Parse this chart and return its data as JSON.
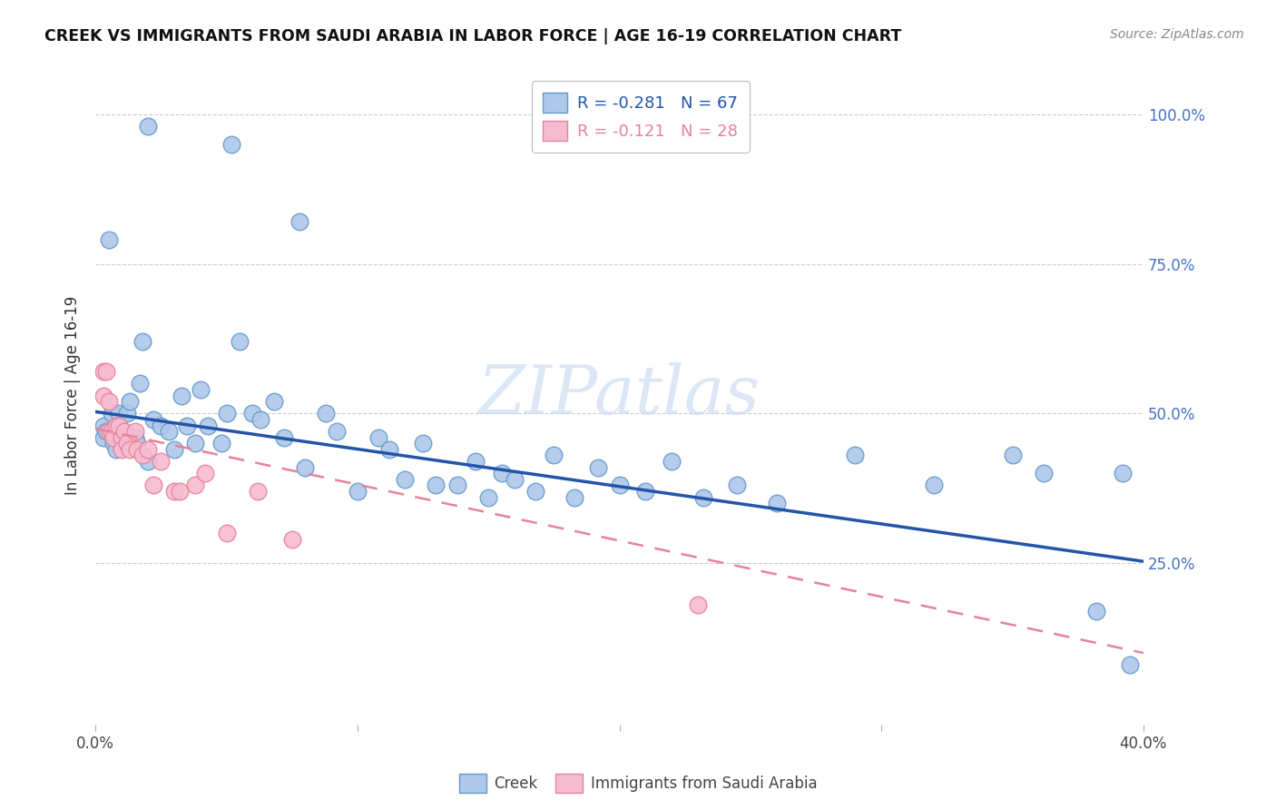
{
  "title": "CREEK VS IMMIGRANTS FROM SAUDI ARABIA IN LABOR FORCE | AGE 16-19 CORRELATION CHART",
  "source": "Source: ZipAtlas.com",
  "ylabel": "In Labor Force | Age 16-19",
  "xlim": [
    0.0,
    0.4
  ],
  "ylim": [
    -0.02,
    1.08
  ],
  "right_yticks": [
    1.0,
    0.75,
    0.5,
    0.25
  ],
  "right_yticklabels": [
    "100.0%",
    "75.0%",
    "50.0%",
    "25.0%"
  ],
  "xticks": [
    0.0,
    0.1,
    0.2,
    0.3,
    0.4
  ],
  "xticklabels": [
    "0.0%",
    "",
    "",
    "",
    "40.0%"
  ],
  "legend_entry1": "R = -0.281   N = 67",
  "legend_entry2": "R = -0.121   N = 28",
  "creek_color": "#adc8e8",
  "creek_edge_color": "#6699cc",
  "saudi_color": "#f5bcd0",
  "saudi_edge_color": "#e8829a",
  "trendline_creek_color": "#2255aa",
  "trendline_saudi_color": "#e8829a",
  "watermark": "ZIPatlas",
  "creek_x": [
    0.02,
    0.052,
    0.078,
    0.003,
    0.003,
    0.004,
    0.005,
    0.006,
    0.007,
    0.008,
    0.009,
    0.01,
    0.011,
    0.012,
    0.013,
    0.015,
    0.016,
    0.017,
    0.018,
    0.02,
    0.022,
    0.025,
    0.028,
    0.03,
    0.033,
    0.035,
    0.038,
    0.04,
    0.043,
    0.048,
    0.05,
    0.055,
    0.06,
    0.063,
    0.068,
    0.072,
    0.08,
    0.088,
    0.092,
    0.1,
    0.108,
    0.112,
    0.118,
    0.125,
    0.13,
    0.138,
    0.145,
    0.15,
    0.155,
    0.16,
    0.168,
    0.175,
    0.183,
    0.192,
    0.2,
    0.21,
    0.22,
    0.232,
    0.245,
    0.26,
    0.29,
    0.32,
    0.35,
    0.362,
    0.382,
    0.392,
    0.395
  ],
  "creek_y": [
    0.98,
    0.95,
    0.82,
    0.48,
    0.46,
    0.47,
    0.79,
    0.5,
    0.45,
    0.44,
    0.5,
    0.47,
    0.46,
    0.5,
    0.52,
    0.46,
    0.45,
    0.55,
    0.62,
    0.42,
    0.49,
    0.48,
    0.47,
    0.44,
    0.53,
    0.48,
    0.45,
    0.54,
    0.48,
    0.45,
    0.5,
    0.62,
    0.5,
    0.49,
    0.52,
    0.46,
    0.41,
    0.5,
    0.47,
    0.37,
    0.46,
    0.44,
    0.39,
    0.45,
    0.38,
    0.38,
    0.42,
    0.36,
    0.4,
    0.39,
    0.37,
    0.43,
    0.36,
    0.41,
    0.38,
    0.37,
    0.42,
    0.36,
    0.38,
    0.35,
    0.43,
    0.38,
    0.43,
    0.4,
    0.17,
    0.4,
    0.08
  ],
  "saudi_x": [
    0.003,
    0.003,
    0.004,
    0.005,
    0.005,
    0.006,
    0.007,
    0.008,
    0.009,
    0.01,
    0.01,
    0.011,
    0.012,
    0.013,
    0.015,
    0.016,
    0.018,
    0.02,
    0.022,
    0.025,
    0.03,
    0.032,
    0.038,
    0.042,
    0.05,
    0.062,
    0.075,
    0.23
  ],
  "saudi_y": [
    0.57,
    0.53,
    0.57,
    0.47,
    0.52,
    0.47,
    0.46,
    0.48,
    0.48,
    0.46,
    0.44,
    0.47,
    0.45,
    0.44,
    0.47,
    0.44,
    0.43,
    0.44,
    0.38,
    0.42,
    0.37,
    0.37,
    0.38,
    0.4,
    0.3,
    0.37,
    0.29,
    0.18
  ],
  "creek_trend_x0": 0.0,
  "creek_trend_y0": 0.503,
  "creek_trend_x1": 0.4,
  "creek_trend_y1": 0.253,
  "saudi_trend_x0": 0.0,
  "saudi_trend_y0": 0.475,
  "saudi_trend_x1": 0.4,
  "saudi_trend_y1": 0.1
}
